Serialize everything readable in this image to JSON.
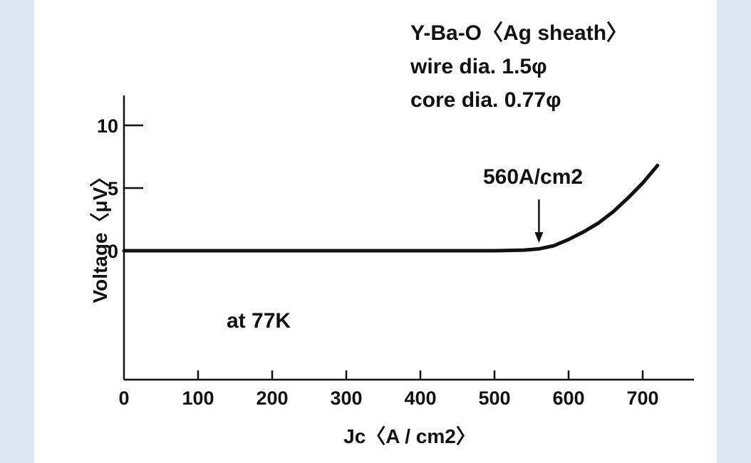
{
  "chart_data": {
    "type": "line",
    "xlabel": "Jc〈A / cm2〉",
    "ylabel": "Voltage〈μV〉",
    "xlim": [
      0,
      770
    ],
    "ylim": [
      -10,
      12
    ],
    "x_ticks": [
      0,
      100,
      200,
      300,
      400,
      500,
      600,
      700
    ],
    "y_ticks": [
      0,
      5,
      10
    ],
    "grid": false,
    "legend": "none",
    "series": [
      {
        "x": [
          0,
          100,
          200,
          300,
          400,
          500,
          540,
          560,
          580,
          600,
          620,
          640,
          660,
          680,
          700,
          720
        ],
        "y": [
          0,
          0,
          0,
          0,
          0,
          0,
          0.05,
          0.15,
          0.4,
          0.9,
          1.5,
          2.2,
          3.1,
          4.2,
          5.4,
          6.8
        ]
      }
    ],
    "annotations": {
      "critical_current": {
        "text": "560A/cm2",
        "x": 560
      },
      "temperature": "at 77K",
      "sample_lines": [
        "Y-Ba-O〈Ag sheath〉",
        "wire dia. 1.5φ",
        "core dia. 0.77φ"
      ]
    },
    "colors": {
      "line": "#111111",
      "background": "#ffffff",
      "frame": "#dde6f2"
    }
  }
}
